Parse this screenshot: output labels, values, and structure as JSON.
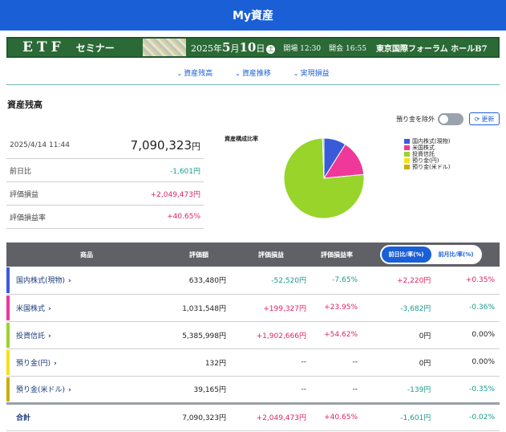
{
  "header": {
    "title": "My資産"
  },
  "banner": {
    "etf": "ETF",
    "seminar": "セミナー",
    "year": "2025年",
    "month": "5",
    "month_suffix": "月",
    "day": "10",
    "day_suffix": "日",
    "weekday": "土",
    "open": "開場 12:30",
    "start": "開会 16:55",
    "venue": "東京国際フォーラム ホールB7"
  },
  "subnav": [
    "資産残高",
    "資産推移",
    "実現損益"
  ],
  "section_title": "資産残高",
  "toggle_label": "預り金を除外",
  "refresh_label": "更新",
  "summary": {
    "datetime": "2025/4/14 11:44",
    "total": "7,090,323",
    "total_unit": "円",
    "rows": [
      {
        "label": "前日比",
        "value": "-1,601円",
        "sign": "neg"
      },
      {
        "label": "評価損益",
        "value": "+2,049,473円",
        "sign": "pos"
      },
      {
        "label": "評価損益率",
        "value": "+40.65%",
        "sign": "pos"
      }
    ]
  },
  "chart_title": "資産構成比率",
  "chart_data": {
    "type": "pie",
    "title": "資産構成比率",
    "labels": [
      "国内株式(現物)",
      "米国株式",
      "投資信託",
      "預り金(円)",
      "預り金(米ドル)"
    ],
    "values": [
      633480,
      1031548,
      5385998,
      132,
      39165
    ],
    "colors": [
      "#3a5bd9",
      "#f0389a",
      "#98d42a",
      "#f5e11a",
      "#c9b000"
    ]
  },
  "table": {
    "headers": [
      "商品",
      "評価額",
      "評価損益",
      "評価損益率"
    ],
    "tabs": [
      "前日比/率(%)",
      "前月比/率(%)"
    ],
    "rows": [
      {
        "name": "国内株式(現物)",
        "value": "633,480円",
        "pl": "-52,520円",
        "plr": "-7.65%",
        "dd": "+2,220円",
        "ddr": "+0.35%",
        "c": [
          "neg",
          "neg",
          "pos",
          "pos"
        ]
      },
      {
        "name": "米国株式",
        "value": "1,031,548円",
        "pl": "+199,327円",
        "plr": "+23.95%",
        "dd": "-3,682円",
        "ddr": "-0.36%",
        "c": [
          "pos",
          "pos",
          "neg",
          "neg"
        ]
      },
      {
        "name": "投資信託",
        "value": "5,385,998円",
        "pl": "+1,902,666円",
        "plr": "+54.62%",
        "dd": "0円",
        "ddr": "0.00%",
        "c": [
          "pos",
          "pos",
          "",
          ""
        ]
      },
      {
        "name": "預り金(円)",
        "value": "132円",
        "pl": "--",
        "plr": "--",
        "dd": "0円",
        "ddr": "0.00%",
        "c": [
          "",
          "",
          "",
          ""
        ]
      },
      {
        "name": "預り金(米ドル)",
        "value": "39,165円",
        "pl": "--",
        "plr": "--",
        "dd": "-139円",
        "ddr": "-0.35%",
        "c": [
          "",
          "",
          "neg",
          "neg"
        ]
      }
    ],
    "total": {
      "name": "合計",
      "value": "7,090,323円",
      "pl": "+2,049,473円",
      "plr": "+40.65%",
      "dd": "-1,601円",
      "ddr": "-0.02%",
      "c": [
        "pos",
        "pos",
        "neg",
        "neg"
      ]
    }
  }
}
